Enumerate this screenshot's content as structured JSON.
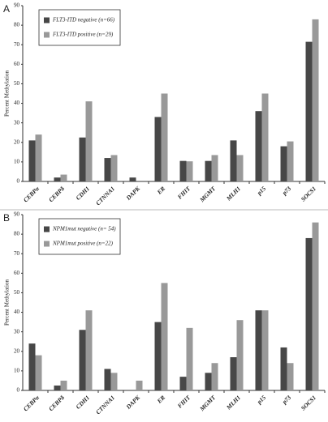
{
  "chart_data": [
    {
      "type": "bar",
      "panel_label": "A",
      "y_label": "Percent Methylation",
      "categories": [
        "CEBPα",
        "CEBPδ",
        "CDH1",
        "CTNNA1",
        "DAPK",
        "ER",
        "FHIT",
        "MGMT",
        "MLH1",
        "p15",
        "p73",
        "SOCS1"
      ],
      "series": [
        {
          "name": "FLT3-ITD negative (n=66)",
          "color": "#474747",
          "values": [
            21,
            2,
            22.5,
            12,
            2,
            33,
            10.5,
            10.5,
            21,
            36,
            18,
            71.5
          ]
        },
        {
          "name": "FLT3-ITD positive (n=29)",
          "color": "#999999",
          "values": [
            24,
            3.5,
            41,
            13.5,
            0,
            45,
            10.3,
            13.5,
            13.5,
            45,
            20.5,
            83
          ]
        }
      ],
      "ylim": [
        0,
        90
      ],
      "yticks": [
        0,
        10,
        20,
        30,
        40,
        50,
        60,
        70,
        80,
        90
      ]
    },
    {
      "type": "bar",
      "panel_label": "B",
      "y_label": "Percent Methylation",
      "categories": [
        "CEBPα",
        "CEBPδ",
        "CDH1",
        "CTNNA1",
        "DAPK",
        "ER",
        "FHIT",
        "MGMT",
        "MLH1",
        "p15",
        "p73",
        "SOCS1"
      ],
      "series": [
        {
          "name": "NPM1mut negative (n= 54)",
          "color": "#474747",
          "values": [
            24,
            2.5,
            31,
            11,
            0,
            35,
            7,
            9,
            17,
            41,
            22,
            78
          ]
        },
        {
          "name": "NPM1mut positive (n=22)",
          "color": "#999999",
          "values": [
            18,
            5,
            41,
            9,
            5,
            55,
            32,
            14,
            36,
            41,
            14,
            86
          ]
        }
      ],
      "ylim": [
        0,
        90
      ],
      "yticks": [
        0,
        10,
        20,
        30,
        40,
        50,
        60,
        70,
        80,
        90
      ]
    }
  ]
}
